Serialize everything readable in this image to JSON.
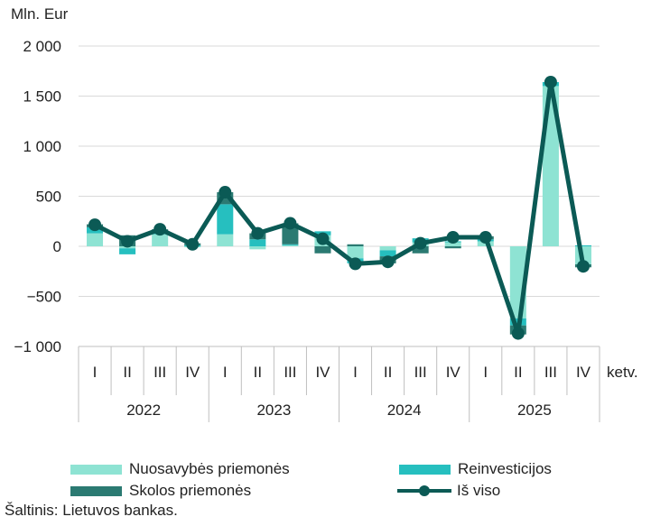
{
  "chart_data": {
    "type": "bar",
    "unit_label": "Mln. Eur",
    "x_axis_suffix": "ketv.",
    "quarters": [
      "I",
      "II",
      "III",
      "IV",
      "I",
      "II",
      "III",
      "IV",
      "I",
      "II",
      "III",
      "IV",
      "I",
      "II",
      "III",
      "IV"
    ],
    "years": [
      "2022",
      "2023",
      "2024",
      "2025"
    ],
    "y_ticks": [
      "2 000",
      "1 500",
      "1 000",
      "500",
      "0",
      "−500",
      "−1 000"
    ],
    "y_tick_values": [
      2000,
      1500,
      1000,
      500,
      0,
      -500,
      -1000
    ],
    "ylim": [
      -1000,
      2000
    ],
    "series": [
      {
        "name": "Nuosavybės priemonės",
        "kind": "bar",
        "color": "#8ee3d3",
        "values": [
          130,
          -20,
          120,
          -10,
          120,
          -30,
          10,
          110,
          -120,
          -40,
          40,
          40,
          50,
          -720,
          1600,
          -180
        ]
      },
      {
        "name": "Reinvesticijos",
        "kind": "bar",
        "color": "#26bfbf",
        "values": [
          60,
          -60,
          20,
          10,
          300,
          70,
          10,
          40,
          -50,
          -60,
          40,
          10,
          20,
          -70,
          40,
          10
        ]
      },
      {
        "name": "Skolos priemonės",
        "kind": "bar",
        "color": "#2b7a72",
        "values": [
          30,
          110,
          30,
          20,
          120,
          60,
          210,
          -70,
          20,
          -70,
          -70,
          -20,
          30,
          -90,
          0,
          -30
        ]
      },
      {
        "name": "Iš viso",
        "kind": "line",
        "color": "#0b5a55",
        "values": [
          215,
          50,
          170,
          20,
          540,
          130,
          230,
          75,
          -175,
          -155,
          30,
          90,
          90,
          -870,
          1640,
          -200
        ]
      }
    ],
    "grid": true,
    "legend_position": "bottom"
  },
  "source": "Šaltinis: Lietuvos bankas."
}
